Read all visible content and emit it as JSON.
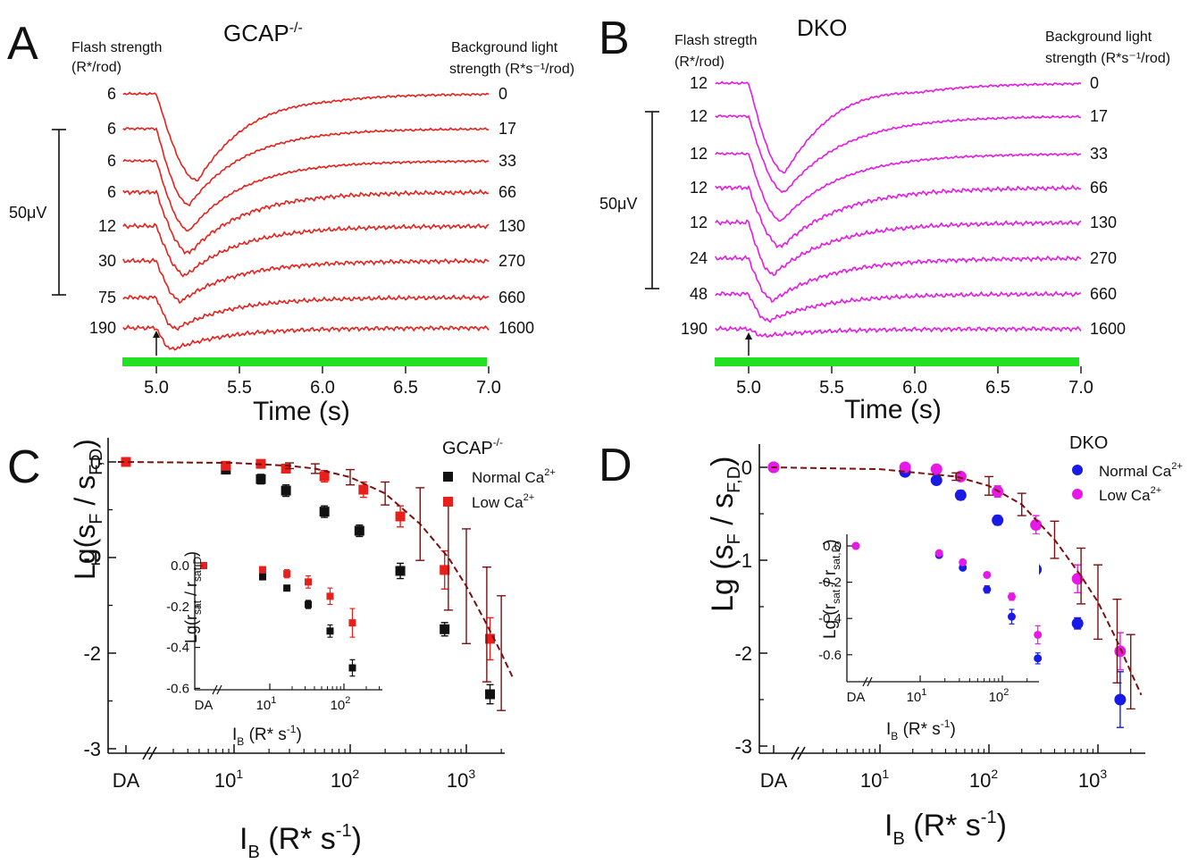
{
  "figure": {
    "panels": {
      "A": {
        "letter": "A",
        "title": "GCAP",
        "title_sup": "-/-",
        "flash_hdr": "Flash strength",
        "flash_unit": "(R*/rod)",
        "bg_hdr": "Background light",
        "bg_unit": "strength (R*s⁻¹/rod)",
        "scale_label": "50μV",
        "trace_color": "#e8201c",
        "flash_strengths": [
          "6",
          "6",
          "6",
          "6",
          "12",
          "30",
          "75",
          "190"
        ],
        "bg_strengths": [
          "0",
          "17",
          "33",
          "66",
          "130",
          "270",
          "660",
          "1600"
        ],
        "xticks": [
          "5.0",
          "5.5",
          "6.0",
          "6.5",
          "7.0"
        ],
        "xlabel": "Time (s)"
      },
      "B": {
        "letter": "B",
        "title": "DKO",
        "flash_hdr": "Flash stregth",
        "flash_unit": "(R*/rod)",
        "bg_hdr": "Background light",
        "bg_unit": "strength (R*s⁻¹/rod)",
        "scale_label": "50μV",
        "trace_color": "#e619e6",
        "flash_strengths": [
          "12",
          "12",
          "12",
          "12",
          "12",
          "24",
          "48",
          "190"
        ],
        "bg_strengths": [
          "0",
          "17",
          "33",
          "66",
          "130",
          "270",
          "660",
          "1600"
        ],
        "xticks": [
          "5.0",
          "5.5",
          "6.0",
          "6.5",
          "7.0"
        ],
        "xlabel": "Time (s)"
      },
      "C": {
        "letter": "C",
        "legend_title": "GCAP",
        "legend_title_sup": "-/-",
        "yticks": [
          "0",
          "-1",
          "-2",
          "-3"
        ],
        "xtick_da": "DA",
        "xticks": [
          "10",
          "10",
          "10"
        ],
        "xtick_exps": [
          "1",
          "2",
          "3"
        ],
        "ylabel": "Lg(s",
        "xlabel": "I",
        "inset_yticks": [
          "0.0",
          "-0.2",
          "-0.4",
          "-0.6"
        ],
        "inset_xtick_da": "DA",
        "inset_xticks": [
          "10",
          "10"
        ],
        "inset_xtick_exps": [
          "1",
          "2"
        ],
        "inset_ylabel": "Lg(r",
        "inset_xlabel": "I"
      },
      "D": {
        "letter": "D",
        "legend_title": "DKO",
        "yticks": [
          "0",
          "-1",
          "-2",
          "-3"
        ],
        "xtick_da": "DA",
        "xticks": [
          "10",
          "10",
          "10"
        ],
        "xtick_exps": [
          "1",
          "2",
          "3"
        ],
        "ylabel": "Lg (s",
        "xlabel": "I",
        "inset_yticks": [
          "0.0",
          "-0.2",
          "-0.4",
          "-0.6"
        ],
        "inset_xtick_da": "DA",
        "inset_xticks": [
          "10",
          "10"
        ],
        "inset_xtick_exps": [
          "1",
          "2"
        ],
        "inset_ylabel": "Lg (r",
        "inset_xlabel": "I"
      }
    },
    "colors": {
      "normal_gcap": "#111111",
      "low_ca": "#e8201c",
      "normal_dko": "#1a1ae6",
      "low_dko": "#e619e6",
      "fit": "#7a1010",
      "green_bar": "#22e022"
    }
  },
  "chart_data": [
    {
      "panel": "C",
      "type": "scatter",
      "xscale": "log",
      "xlabel": "I_B (R* s^-1)",
      "ylabel": "Lg(s_F / s_F,D)",
      "ylim": [
        -3.0,
        0.1
      ],
      "legend_position": "top-right",
      "series": [
        {
          "name": "Normal Ca2+",
          "marker": "square",
          "color": "#111111",
          "points": [
            [
              "DA",
              0
            ],
            [
              8.5,
              -0.08
            ],
            [
              17,
              -0.18
            ],
            [
              28,
              -0.3
            ],
            [
              60,
              -0.52
            ],
            [
              120,
              -0.72
            ],
            [
              270,
              -1.14
            ],
            [
              650,
              -1.75
            ],
            [
              1600,
              -2.43
            ]
          ],
          "err": [
            0,
            0.04,
            0.05,
            0.06,
            0.06,
            0.06,
            0.08,
            0.07,
            0.1
          ]
        },
        {
          "name": "Low Ca2+",
          "marker": "square",
          "color": "#e8201c",
          "points": [
            [
              "DA",
              0
            ],
            [
              8.5,
              -0.04
            ],
            [
              17,
              -0.02
            ],
            [
              28,
              -0.07
            ],
            [
              60,
              -0.15
            ],
            [
              130,
              -0.29
            ],
            [
              270,
              -0.57
            ],
            [
              650,
              -1.13
            ],
            [
              1600,
              -1.85
            ]
          ],
          "err": [
            0,
            0.02,
            0.03,
            0.04,
            0.06,
            0.08,
            0.11,
            0.2,
            0.22
          ]
        },
        {
          "name": "fit",
          "type": "line",
          "style": "dashed",
          "color": "#7a1010",
          "x": [
            1,
            10,
            30,
            50,
            100,
            200,
            400,
            700,
            1000,
            1500,
            2000,
            2500
          ],
          "y": [
            0,
            -0.01,
            -0.04,
            -0.07,
            -0.16,
            -0.33,
            -0.65,
            -1.0,
            -1.3,
            -1.7,
            -2.0,
            -2.25
          ],
          "err": [
            0,
            0,
            0.03,
            0.05,
            0.08,
            0.12,
            0.38,
            0.55,
            0.6,
            0.6,
            0.6,
            0
          ]
        }
      ],
      "inset": {
        "xlabel": "I_B (R* s^-1)",
        "ylabel": "Lg(r_sat / r_sat,D)",
        "ylim": [
          -0.6,
          0.05
        ],
        "series": [
          {
            "name": "Normal Ca2+",
            "points": [
              [
                "DA",
                0
              ],
              [
                8,
                -0.055
              ],
              [
                17,
                -0.11
              ],
              [
                33,
                -0.19
              ],
              [
                65,
                -0.32
              ],
              [
                130,
                -0.5
              ]
            ],
            "err": [
              0,
              0.01,
              0.01,
              0.02,
              0.03,
              0.04
            ]
          },
          {
            "name": "Low Ca2+",
            "points": [
              [
                "DA",
                0
              ],
              [
                8,
                -0.02
              ],
              [
                17,
                -0.04
              ],
              [
                33,
                -0.08
              ],
              [
                65,
                -0.15
              ],
              [
                130,
                -0.28
              ]
            ],
            "err": [
              0,
              0.01,
              0.02,
              0.03,
              0.04,
              0.07
            ]
          }
        ]
      }
    },
    {
      "panel": "D",
      "type": "scatter",
      "xscale": "log",
      "xlabel": "I_B (R* s^-1)",
      "ylabel": "Lg (s_F / s_F,D)",
      "ylim": [
        -3.0,
        0.1
      ],
      "legend_position": "top-right",
      "series": [
        {
          "name": "Normal Ca2+",
          "marker": "circle",
          "color": "#1a1ae6",
          "points": [
            [
              "DA",
              0
            ],
            [
              17,
              -0.05
            ],
            [
              33,
              -0.14
            ],
            [
              55,
              -0.3
            ],
            [
              120,
              -0.57
            ],
            [
              270,
              -1.1
            ],
            [
              650,
              -1.68
            ],
            [
              1600,
              -2.5
            ]
          ],
          "err": [
            0,
            0.03,
            0.04,
            0.05,
            0.05,
            0.05,
            0.06,
            0.3
          ]
        },
        {
          "name": "Low Ca2+",
          "marker": "circle",
          "color": "#e619e6",
          "points": [
            [
              "DA",
              0
            ],
            [
              17,
              0
            ],
            [
              33,
              -0.02
            ],
            [
              55,
              -0.1
            ],
            [
              120,
              -0.26
            ],
            [
              270,
              -0.62
            ],
            [
              650,
              -1.2
            ],
            [
              1600,
              -1.98
            ]
          ],
          "err": [
            0,
            0.02,
            0.03,
            0.04,
            0.06,
            0.1,
            0.15,
            0.2
          ]
        },
        {
          "name": "fit",
          "type": "line",
          "style": "dashed",
          "color": "#7a1010",
          "x": [
            1,
            10,
            50,
            100,
            200,
            400,
            700,
            1000,
            1500,
            2000,
            2500
          ],
          "y": [
            0,
            -0.02,
            -0.1,
            -0.2,
            -0.4,
            -0.78,
            -1.17,
            -1.45,
            -1.87,
            -2.2,
            -2.45
          ],
          "err": [
            0,
            0,
            0.04,
            0.1,
            0.12,
            0.2,
            0.3,
            0.4,
            0.45,
            0.4,
            0
          ]
        }
      ],
      "inset": {
        "xlabel": "I_B (R* s^-1)",
        "ylabel": "Lg (r_sat / r_sat,D)",
        "ylim": [
          -0.66,
          0.05
        ],
        "series": [
          {
            "name": "Normal Ca2+",
            "points": [
              [
                "DA",
                0
              ],
              [
                17,
                -0.05
              ],
              [
                33,
                -0.12
              ],
              [
                65,
                -0.24
              ],
              [
                130,
                -0.39
              ],
              [
                270,
                -0.62
              ]
            ],
            "err": [
              0,
              0.01,
              0.01,
              0.02,
              0.04,
              0.03
            ]
          },
          {
            "name": "Low Ca2+",
            "points": [
              [
                "DA",
                0
              ],
              [
                17,
                -0.04
              ],
              [
                33,
                -0.09
              ],
              [
                65,
                -0.16
              ],
              [
                130,
                -0.28
              ],
              [
                270,
                -0.49
              ]
            ],
            "err": [
              0,
              0.01,
              0.01,
              0.01,
              0.02,
              0.05
            ]
          }
        ]
      }
    }
  ]
}
